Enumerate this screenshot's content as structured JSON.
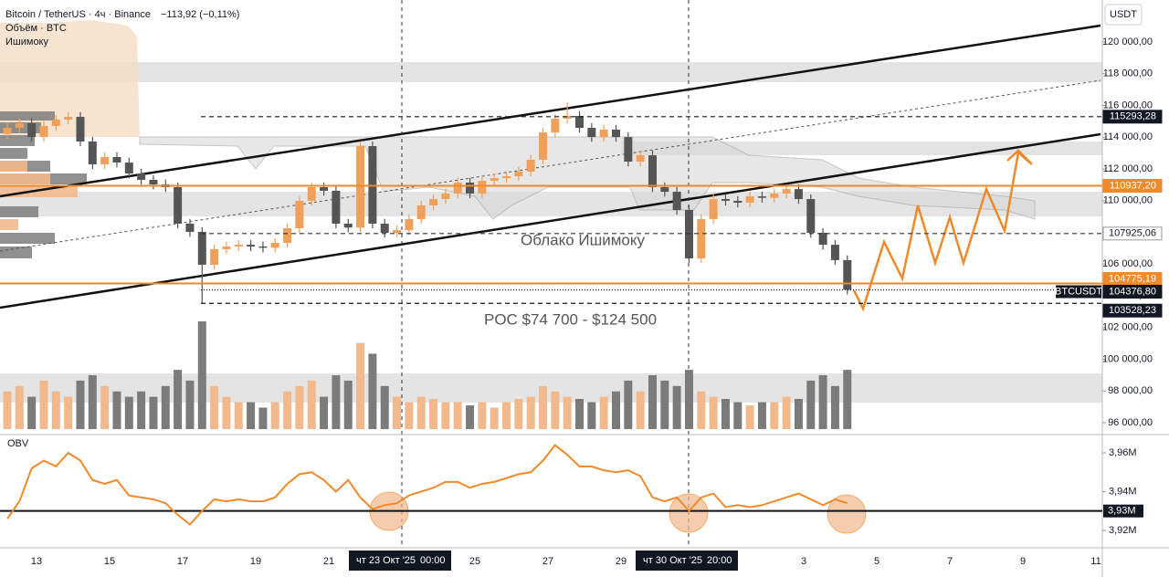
{
  "chart_data": {
    "type": "candlestick",
    "header": {
      "symbol": "Bitcoin / TetherUS · 4ч · Binance",
      "change": "−113,92 (−0,11%)",
      "volume_label": "Объём · BTC",
      "indicator": "Ишимоку",
      "currency": "USDT"
    },
    "annotations": [
      "Облако Ишимоку",
      "POC $74 700 - $124 500"
    ],
    "symbol_tag": "BTCUSDT",
    "crosshair": [
      {
        "date": "чт 23 Окт '25",
        "time": "00:00"
      },
      {
        "date": "чт 30 Окт '25",
        "time": "20:00"
      }
    ],
    "categories": [
      "13",
      null,
      "15",
      null,
      "17",
      null,
      "19",
      null,
      "21",
      null,
      null,
      null,
      "25",
      null,
      "27",
      null,
      "29",
      null,
      null,
      null,
      null,
      "3",
      null,
      "5",
      null,
      "7",
      null,
      "9",
      null,
      "11"
    ],
    "ylim": [
      95310,
      122650
    ],
    "yticks": [
      {
        "value": 96000,
        "label": "96 000,00"
      },
      {
        "value": 98000,
        "label": "98 000,00"
      },
      {
        "value": 100000,
        "label": "100 000,00"
      },
      {
        "value": 102000,
        "label": "102 000,00"
      },
      {
        "value": 104000,
        "label": "104 000,00"
      },
      {
        "value": 106000,
        "label": "106 000,00"
      },
      {
        "value": 108000,
        "label": "108 000,00"
      },
      {
        "value": 110000,
        "label": "110 000,00"
      },
      {
        "value": 112000,
        "label": "112 000,00"
      },
      {
        "value": 114000,
        "label": "114 000,00"
      },
      {
        "value": 116000,
        "label": "116 000,00"
      },
      {
        "value": 118000,
        "label": "118 000,00"
      },
      {
        "value": 120000,
        "label": "120 000,00"
      }
    ],
    "levels": [
      {
        "value": 115293.28,
        "label": "115293,28",
        "color": "#131722",
        "style": "dashed"
      },
      {
        "value": 110937.2,
        "label": "110937,20",
        "color": "#ef8a2c",
        "style": "solid"
      },
      {
        "value": 107925.06,
        "label": "107925,06",
        "color": "#ffffff",
        "style": "dashed"
      },
      {
        "value": 104775.19,
        "label": "104775,19",
        "color": "#ef8a2c",
        "style": "solid"
      },
      {
        "value": 104376.8,
        "label": "104376,80",
        "color": "#131722",
        "style": "dotted"
      },
      {
        "value": 103528.23,
        "label": "103528,23",
        "color": "#131722",
        "style": "dashed"
      }
    ],
    "candles": {
      "up_color": "#f0a05a",
      "down_color": "#555555",
      "open": [
        114200,
        114590,
        114880,
        114010,
        114710,
        115110,
        115280,
        113730,
        112290,
        112750,
        112400,
        111710,
        111310,
        111020,
        110850,
        108550,
        108030,
        105960,
        106940,
        107110,
        107220,
        107110,
        107030,
        107340,
        108260,
        109990,
        110850,
        110620,
        108550,
        108300,
        113440,
        108550,
        107970,
        108140,
        108840,
        109700,
        110100,
        110450,
        111140,
        110450,
        111250,
        111420,
        111540,
        111830,
        112580,
        114300,
        115170,
        115340,
        114590,
        114010,
        114480,
        114010,
        112460,
        112860,
        110850,
        110560,
        109410,
        106360,
        108840,
        110100,
        109990,
        109870,
        110270,
        110180,
        110450,
        110730,
        110100,
        107970,
        107220,
        106250
      ],
      "high": [
        114890,
        115180,
        115180,
        115010,
        115410,
        115580,
        115580,
        114030,
        113050,
        113050,
        112700,
        112010,
        111610,
        111320,
        111150,
        108850,
        108330,
        107240,
        107410,
        107520,
        107520,
        107410,
        107640,
        108560,
        110290,
        111150,
        111150,
        110920,
        108850,
        113740,
        113740,
        108850,
        108440,
        109140,
        110000,
        110400,
        110750,
        111440,
        111440,
        111550,
        111720,
        111840,
        112130,
        112880,
        114600,
        115470,
        116200,
        115640,
        114890,
        114780,
        114780,
        114310,
        113160,
        113160,
        111150,
        110860,
        109710,
        109140,
        110400,
        110400,
        110290,
        110570,
        110570,
        110750,
        111030,
        111030,
        110400,
        108270,
        107520,
        106550
      ],
      "low": [
        113900,
        114290,
        113710,
        113710,
        114410,
        114810,
        113430,
        111990,
        111990,
        112100,
        111410,
        111010,
        110720,
        110550,
        108250,
        107730,
        103530,
        105660,
        106640,
        106810,
        106810,
        106730,
        106730,
        107040,
        107960,
        109690,
        110320,
        108250,
        108000,
        108000,
        108250,
        107670,
        107670,
        107840,
        108540,
        109400,
        109800,
        110150,
        110150,
        110150,
        110950,
        111120,
        111240,
        111530,
        112280,
        114000,
        114870,
        114290,
        113710,
        113710,
        113710,
        112160,
        112160,
        110550,
        110260,
        109110,
        106060,
        106060,
        108540,
        109690,
        109570,
        109570,
        109880,
        109880,
        110150,
        109800,
        107670,
        106920,
        105950,
        104080
      ],
      "close": [
        114590,
        114880,
        114010,
        114710,
        115110,
        115280,
        113730,
        112290,
        112750,
        112400,
        111710,
        111310,
        111020,
        110850,
        108550,
        108030,
        105960,
        106940,
        107110,
        107220,
        107110,
        107030,
        107340,
        108260,
        109990,
        110850,
        110620,
        108550,
        108300,
        113440,
        108550,
        107970,
        108140,
        108840,
        109700,
        110100,
        110450,
        111140,
        110450,
        111250,
        111420,
        111540,
        111830,
        112580,
        114300,
        115170,
        115340,
        114590,
        114010,
        114480,
        114010,
        112460,
        112860,
        110850,
        110560,
        109410,
        106360,
        108840,
        110100,
        109990,
        109870,
        110270,
        110180,
        110450,
        110730,
        110100,
        107970,
        107220,
        106250,
        104380
      ]
    },
    "volume": {
      "up_color": "#f2b98c",
      "down_color": "#7b7b7b",
      "vlim": [
        0,
        100
      ],
      "values": [
        35,
        40,
        30,
        45,
        35,
        30,
        45,
        50,
        40,
        35,
        30,
        35,
        30,
        40,
        55,
        45,
        100,
        40,
        30,
        25,
        25,
        20,
        25,
        35,
        40,
        45,
        30,
        50,
        45,
        80,
        70,
        40,
        30,
        25,
        30,
        28,
        25,
        25,
        22,
        25,
        20,
        25,
        28,
        30,
        40,
        35,
        30,
        28,
        25,
        30,
        35,
        45,
        35,
        50,
        45,
        40,
        55,
        35,
        30,
        28,
        25,
        22,
        25,
        25,
        30,
        28,
        45,
        50,
        40,
        55
      ]
    },
    "obv": {
      "title": "OBV",
      "color": "#ef8a2c",
      "ylim": [
        3.911,
        3.9685
      ],
      "yticks": [
        {
          "value": 3.96,
          "label": "3,96M"
        },
        {
          "value": 3.94,
          "label": "3,94M"
        },
        {
          "value": 3.92,
          "label": "3,92M"
        }
      ],
      "level": {
        "value": 3.93,
        "label": "3,93M"
      },
      "values": [
        3.926,
        3.935,
        3.952,
        3.956,
        3.953,
        3.96,
        3.956,
        3.946,
        3.944,
        3.946,
        3.938,
        3.937,
        3.936,
        3.934,
        3.928,
        3.923,
        3.93,
        3.936,
        3.935,
        3.936,
        3.935,
        3.935,
        3.937,
        3.944,
        3.949,
        3.95,
        3.946,
        3.94,
        3.946,
        3.937,
        3.931,
        3.933,
        3.934,
        3.938,
        3.94,
        3.942,
        3.945,
        3.945,
        3.942,
        3.944,
        3.945,
        3.947,
        3.949,
        3.95,
        3.956,
        3.964,
        3.959,
        3.953,
        3.953,
        3.951,
        3.95,
        3.951,
        3.948,
        3.937,
        3.935,
        3.937,
        3.93,
        3.937,
        3.939,
        3.932,
        3.933,
        3.932,
        3.933,
        3.935,
        3.937,
        3.939,
        3.936,
        3.933,
        3.936,
        3.934
      ]
    }
  }
}
